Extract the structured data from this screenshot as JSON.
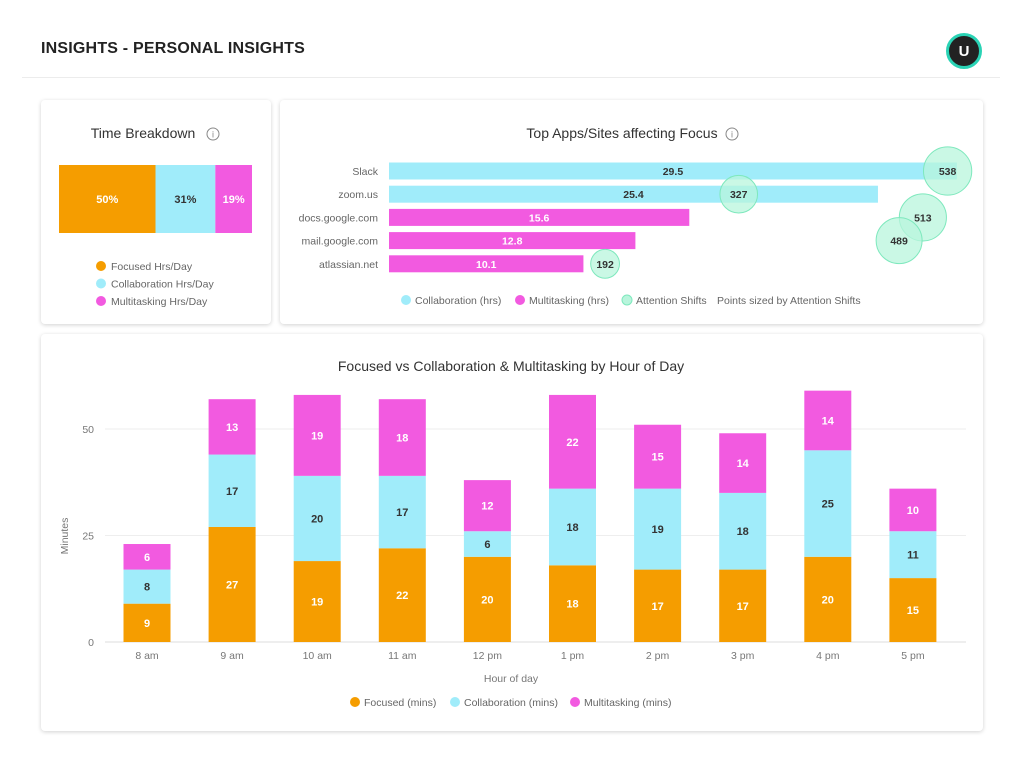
{
  "header": {
    "title": "INSIGHTS - PERSONAL INSIGHTS",
    "avatar_initial": "U"
  },
  "colors": {
    "focused": "#f59d00",
    "collaboration": "#a0ecfa",
    "multitasking": "#f25ae0",
    "attention": "#b8f5dc",
    "attention_border": "#7ee8bd"
  },
  "chart_data": [
    {
      "type": "bar",
      "title": "Time Breakdown",
      "info_icon": "info-icon",
      "categories": [
        "Focused Hrs/Day",
        "Collaboration Hrs/Day",
        "Multitasking Hrs/Day"
      ],
      "values": [
        50,
        31,
        19
      ],
      "labels": [
        "50%",
        "31%",
        "19%"
      ],
      "legend": "bottom"
    },
    {
      "type": "bar",
      "title": "Top Apps/Sites affecting Focus",
      "info_icon": "info-icon",
      "categories": [
        "Slack",
        "zoom.us",
        "docs.google.com",
        "mail.google.com",
        "atlassian.net"
      ],
      "values": [
        29.5,
        25.4,
        15.6,
        12.8,
        10.1
      ],
      "bar_types": [
        "collaboration",
        "collaboration",
        "multitasking",
        "multitasking",
        "multitasking"
      ],
      "attention_shifts": [
        538,
        327,
        513,
        489,
        192
      ],
      "legend": [
        "Collaboration (hrs)",
        "Multitasking (hrs)",
        "Attention Shifts"
      ],
      "legend_note": "Points sized by Attention Shifts",
      "legend_position": "bottom"
    },
    {
      "type": "bar",
      "stacked": true,
      "title": "Focused vs Collaboration & Multitasking by Hour of Day",
      "xlabel": "Hour of day",
      "ylabel": "Minutes",
      "yticks": [
        0,
        25,
        50
      ],
      "ylim": [
        0,
        60
      ],
      "grid": true,
      "categories": [
        "8 am",
        "9 am",
        "10 am",
        "11 am",
        "12 pm",
        "1 pm",
        "2 pm",
        "3 pm",
        "4 pm",
        "5 pm"
      ],
      "series": [
        {
          "name": "Focused (mins)",
          "key": "focused",
          "values": [
            9,
            27,
            19,
            22,
            20,
            18,
            17,
            17,
            20,
            15
          ]
        },
        {
          "name": "Collaboration (mins)",
          "key": "collaboration",
          "values": [
            8,
            17,
            20,
            17,
            6,
            18,
            19,
            18,
            25,
            11
          ]
        },
        {
          "name": "Multitasking (mins)",
          "key": "multitasking",
          "values": [
            6,
            13,
            19,
            18,
            12,
            22,
            15,
            14,
            14,
            10
          ]
        }
      ],
      "legend": "bottom"
    }
  ]
}
